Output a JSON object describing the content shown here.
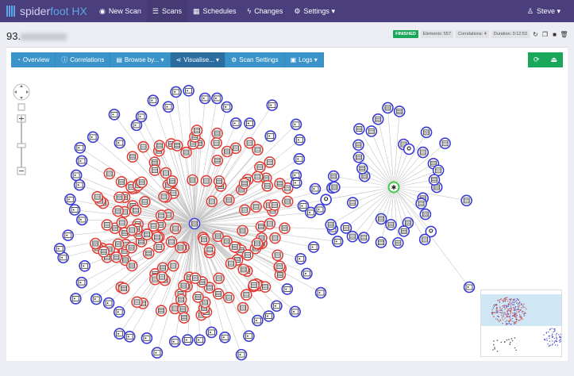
{
  "nav": {
    "brand_a": "spider",
    "brand_b": "foot HX",
    "items": [
      {
        "label": "New Scan",
        "icon": "globe-icon"
      },
      {
        "label": "Scans",
        "icon": "list-icon"
      },
      {
        "label": "Schedules",
        "icon": "calendar-icon"
      },
      {
        "label": "Changes",
        "icon": "bolt-icon"
      },
      {
        "label": "Settings",
        "icon": "gears-icon"
      }
    ],
    "user": "Steve"
  },
  "scan": {
    "title": "93.",
    "status": "FINISHED",
    "elements": "Elements: 557",
    "correlations": "Correlations: 4",
    "duration": "Duration: 0:12:53"
  },
  "tabs": [
    {
      "label": "Overview"
    },
    {
      "label": "Correlations"
    },
    {
      "label": "Browse by..."
    },
    {
      "label": "Visualise..."
    },
    {
      "label": "Scan Settings"
    },
    {
      "label": "Logs"
    }
  ],
  "colors": {
    "nav": "#4a3f7c",
    "tabs": "#3b94c9",
    "active_tab": "#2a6d9e",
    "green": "#19a85a",
    "node_blue": "#3a3ad6",
    "node_red": "#e0403a",
    "root_green": "#3fd03f"
  }
}
